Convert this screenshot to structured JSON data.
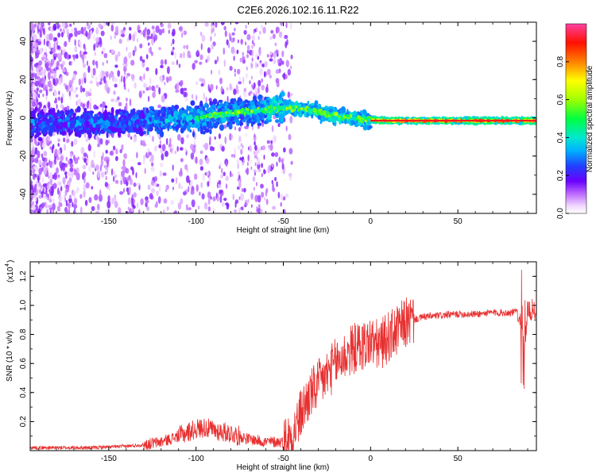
{
  "figure_title": "C2E6.2026.102.16.11.R22",
  "colors": {
    "snr_line": "#e83030",
    "axis": "#000000",
    "background": "#ffffff"
  },
  "chart_data": [
    {
      "type": "heatmap",
      "title": "C2E6.2026.102.16.11.R22",
      "xlabel": "Height of straight line (km)",
      "ylabel": "Frequency (Hz)",
      "xlim": [
        -195,
        95
      ],
      "ylim": [
        -50,
        50
      ],
      "x_ticks": [
        -150,
        -100,
        -50,
        0,
        50
      ],
      "x_tick_labels": [
        "-150",
        "-100",
        "-50",
        "0",
        "50"
      ],
      "y_ticks": [
        -40,
        -20,
        0,
        20,
        40
      ],
      "y_tick_labels": [
        "-40",
        "-20",
        "0",
        "20",
        "40"
      ],
      "colorbar": {
        "label": "Normalized spectral amplitude",
        "range": [
          0,
          1
        ],
        "ticks": [
          0.0,
          0.2,
          0.4,
          0.6,
          0.8
        ],
        "tick_labels": [
          "0.0",
          "0.2",
          "0.4",
          "0.6",
          "0.8"
        ]
      },
      "ridge": {
        "description": "dominant Doppler frequency vs height",
        "x": [
          -195,
          -150,
          -100,
          -75,
          -50,
          -40,
          -30,
          -20,
          -10,
          0,
          10,
          30,
          60,
          95
        ],
        "y": [
          -3,
          -3,
          0,
          3,
          5,
          5,
          3,
          1,
          0,
          -1,
          -1.5,
          -1.5,
          -1.5,
          -1.5
        ]
      }
    },
    {
      "type": "line",
      "xlabel": "Height of straight line (km)",
      "ylabel": "SNR (10 * v/v)",
      "y_scale_note": "(x10",
      "y_scale_exp": "4",
      "xlim": [
        -195,
        95
      ],
      "ylim": [
        0,
        1.3
      ],
      "x_ticks": [
        -150,
        -100,
        -50,
        0,
        50
      ],
      "x_tick_labels": [
        "-150",
        "-100",
        "-50",
        "0",
        "50"
      ],
      "y_ticks": [
        0.2,
        0.4,
        0.6,
        0.8,
        1.0,
        1.2
      ],
      "y_tick_labels": [
        "0.2",
        "0.4",
        "0.6",
        "0.8",
        "1.0",
        "1.2"
      ],
      "series": [
        {
          "name": "SNR",
          "x": [
            -195,
            -180,
            -160,
            -140,
            -130,
            -120,
            -110,
            -100,
            -95,
            -90,
            -80,
            -70,
            -60,
            -50,
            -45,
            -40,
            -35,
            -30,
            -25,
            -20,
            -15,
            -10,
            -5,
            0,
            5,
            10,
            15,
            20,
            25,
            30,
            40,
            50,
            60,
            70,
            80,
            85,
            88,
            90,
            95
          ],
          "y": [
            0.02,
            0.02,
            0.02,
            0.03,
            0.04,
            0.06,
            0.1,
            0.15,
            0.16,
            0.14,
            0.12,
            0.08,
            0.06,
            0.06,
            0.1,
            0.25,
            0.38,
            0.45,
            0.52,
            0.6,
            0.65,
            0.7,
            0.72,
            0.75,
            0.72,
            0.78,
            0.82,
            0.88,
            0.9,
            0.92,
            0.93,
            0.94,
            0.94,
            0.95,
            0.95,
            0.96,
            0.7,
            0.96,
            0.97
          ]
        }
      ]
    }
  ]
}
